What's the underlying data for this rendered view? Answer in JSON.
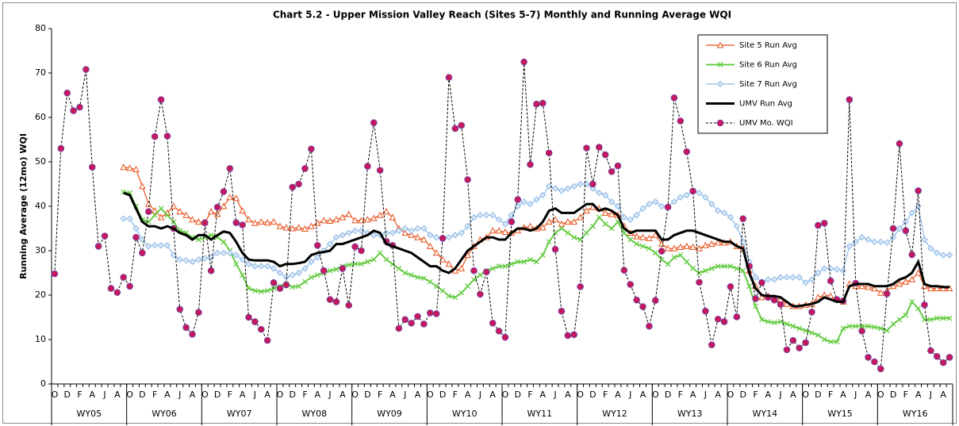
{
  "chart_data": {
    "type": "line",
    "title": "Chart 5.2 - Upper Mission Valley Reach (Sites 5-7) Monthly and Running Average WQI",
    "y_label": "Running Average (12mo) WQI",
    "ylim": [
      0,
      80
    ],
    "yticks": [
      0,
      10,
      20,
      30,
      40,
      50,
      60,
      70,
      80
    ],
    "grid": false,
    "legend": "upper right",
    "categories": [
      "O",
      null,
      "D",
      null,
      "F",
      null,
      "A",
      null,
      "J",
      null,
      "A",
      null,
      "O",
      null,
      "D",
      null,
      "F",
      null,
      "A",
      null,
      "J",
      null,
      "A",
      null,
      "O",
      null,
      "D",
      null,
      "F",
      null,
      "A",
      null,
      "J",
      null,
      "A",
      null,
      "O",
      null,
      "D",
      null,
      "F",
      null,
      "A",
      null,
      "J",
      null,
      "A",
      null,
      "O",
      null,
      "D",
      null,
      "F",
      null,
      "A",
      null,
      "J",
      null,
      "A",
      null,
      "O",
      null,
      "D",
      null,
      "F",
      null,
      "A",
      null,
      "J",
      null,
      "A",
      null,
      "O",
      null,
      "D",
      null,
      "F",
      null,
      "A",
      null,
      "J",
      null,
      "A",
      null,
      "O",
      null,
      "D",
      null,
      "F",
      null,
      "A",
      null,
      "J",
      null,
      "A",
      null,
      "O",
      null,
      "D",
      null,
      "F",
      null,
      "A",
      null,
      "J",
      null,
      "A",
      null,
      "O",
      null,
      "D",
      null,
      "F",
      null,
      "A",
      null,
      "J",
      null,
      "A",
      null,
      "O",
      null,
      "D",
      null,
      "F",
      null,
      "A",
      null,
      "J",
      null,
      "A",
      null,
      "O",
      null,
      "D",
      null,
      "F",
      null,
      "A",
      null,
      "J",
      null,
      "A",
      null
    ],
    "groups": [
      "WY05",
      "WY06",
      "WY07",
      "WY08",
      "WY09",
      "WY10",
      "WY11",
      "WY12",
      "WY13",
      "WY14",
      "WY15",
      "WY16"
    ],
    "series": [
      {
        "name": "Site 5 Run Avg",
        "color": "#e8501a",
        "marker": "triangle",
        "line_width": 1.2,
        "dashed": false,
        "values": [
          null,
          null,
          null,
          null,
          null,
          null,
          null,
          null,
          null,
          null,
          null,
          48.8,
          48.6,
          48.3,
          44.5,
          40.5,
          39,
          37.5,
          38.5,
          40,
          38.8,
          38,
          37,
          36.5,
          36.3,
          38.8,
          38.2,
          40,
          42,
          41.8,
          39,
          37,
          36.2,
          36.5,
          36.3,
          36.5,
          35.5,
          35.2,
          35,
          35.2,
          34.9,
          35.5,
          36.2,
          36.8,
          36.7,
          37,
          37.5,
          38.2,
          36.8,
          36.8,
          37,
          37.3,
          38,
          38.8,
          37.5,
          35,
          34,
          33.5,
          33,
          32.5,
          31,
          29.5,
          28,
          27,
          25.5,
          26,
          29,
          31,
          32.5,
          33,
          34.5,
          34.5,
          34.2,
          34,
          34.5,
          35.2,
          35.5,
          35,
          35.2,
          36.5,
          37,
          36,
          36.5,
          36.5,
          37.5,
          39,
          39.8,
          39.5,
          38.5,
          38.2,
          38,
          35.5,
          34,
          33.2,
          33,
          32.8,
          33.5,
          31.5,
          30.5,
          30.5,
          30.8,
          31,
          30.8,
          30.5,
          31.2,
          31.5,
          31.8,
          31.8,
          32,
          31,
          30.5,
          25.5,
          22,
          19.5,
          19.8,
          19.2,
          19,
          18,
          17.5,
          17.5,
          17.8,
          18,
          19.5,
          20,
          19.8,
          19,
          18.5,
          22.5,
          22,
          22,
          21.8,
          21.5,
          20.5,
          21,
          22,
          22.5,
          23,
          23.5,
          25,
          22,
          21.5,
          21.5,
          21.5,
          21.5
        ]
      },
      {
        "name": "Site 6 Run Avg",
        "color": "#66cc44",
        "marker": "x",
        "line_width": 2,
        "dashed": false,
        "values": [
          null,
          null,
          null,
          null,
          null,
          null,
          null,
          null,
          null,
          null,
          null,
          43.2,
          43,
          40,
          37,
          36.5,
          38,
          39.5,
          38,
          36.5,
          34.5,
          34,
          33,
          32.5,
          33,
          33.5,
          33,
          32,
          30,
          27,
          24.5,
          21.5,
          21,
          20.8,
          21,
          21.5,
          22,
          22.5,
          21.8,
          22,
          23,
          24,
          24.5,
          25,
          25.5,
          25.8,
          26.5,
          26.8,
          27,
          27,
          27.5,
          28,
          29.5,
          28,
          27,
          26,
          25,
          24.5,
          24,
          23.8,
          23,
          22,
          21,
          19.8,
          19.5,
          20.5,
          22,
          23.5,
          24.5,
          25.5,
          26,
          26.5,
          26.5,
          27,
          27.5,
          27.5,
          28,
          27.5,
          29,
          32,
          34,
          35,
          34,
          33,
          32.5,
          34,
          35.5,
          37.5,
          36,
          35,
          36.5,
          34,
          32.5,
          31.5,
          31,
          30.5,
          29.5,
          28,
          27,
          28.5,
          29,
          27.5,
          26,
          25,
          25.5,
          26,
          26.5,
          26.5,
          26.5,
          26,
          25.5,
          22,
          17.5,
          14.5,
          14,
          13.8,
          14,
          13.5,
          13,
          12.5,
          12,
          11.5,
          11,
          10,
          9.5,
          9.5,
          12.5,
          13,
          13,
          13,
          13,
          12.8,
          12.5,
          12,
          13.5,
          14.5,
          15.5,
          18.5,
          17,
          14.5,
          14.5,
          14.8,
          14.8,
          14.8
        ]
      },
      {
        "name": "Site 7 Run Avg",
        "color": "#8db8e6",
        "marker": "diamond",
        "line_width": 1.2,
        "dashed": false,
        "values": [
          null,
          null,
          null,
          null,
          null,
          null,
          null,
          null,
          null,
          null,
          null,
          37.2,
          37.2,
          35,
          32.5,
          31,
          31.2,
          31.2,
          31.2,
          29,
          28,
          27.8,
          27.5,
          28,
          28.3,
          28.5,
          29.5,
          29.5,
          29.5,
          29,
          28,
          27,
          26.5,
          26.5,
          26.5,
          26,
          25,
          24,
          24.5,
          25,
          26,
          27.5,
          28.5,
          30,
          31.5,
          33,
          33.5,
          34,
          34.5,
          34.5,
          34,
          33.5,
          33.5,
          34,
          34,
          34.5,
          35,
          34.5,
          35,
          35,
          33.5,
          33,
          32.5,
          33,
          33.5,
          34,
          35.5,
          37.5,
          38,
          38,
          38,
          37,
          36,
          38,
          40,
          41,
          40.5,
          41.5,
          42.5,
          44.5,
          44,
          43.5,
          44,
          44.5,
          45,
          45,
          44,
          43,
          42.5,
          41,
          40,
          37.5,
          37,
          38,
          39.5,
          40.5,
          41,
          40,
          40,
          41,
          42,
          42.5,
          43.5,
          43,
          42,
          40.5,
          39,
          38.5,
          37.5,
          35.5,
          32,
          27.5,
          24,
          23,
          23.5,
          23.5,
          24,
          24,
          24,
          24,
          22.8,
          23.5,
          25,
          26,
          26,
          25.8,
          25.5,
          31,
          32,
          33,
          32.5,
          32,
          32,
          31.8,
          33,
          35,
          36.5,
          38.5,
          40,
          32.5,
          30.5,
          29.5,
          29,
          29
        ]
      },
      {
        "name": "UMV Run Avg",
        "color": "#000000",
        "marker": "none",
        "line_width": 3,
        "dashed": false,
        "values": [
          null,
          null,
          null,
          null,
          null,
          null,
          null,
          null,
          null,
          null,
          null,
          43,
          42.5,
          39.5,
          36.5,
          35.5,
          35.5,
          35,
          35.5,
          35,
          34,
          33.5,
          32.5,
          33.5,
          33.5,
          32.5,
          33.5,
          34.3,
          34,
          32,
          29.5,
          28,
          27.8,
          27.8,
          27.8,
          27.5,
          26.5,
          27,
          27,
          27.2,
          27.5,
          29,
          29.5,
          29.7,
          30,
          31.5,
          31.5,
          32,
          32.5,
          33,
          33.5,
          34.5,
          34,
          31.5,
          31,
          30.5,
          30,
          29.5,
          28.5,
          27.5,
          26.5,
          26.5,
          25.5,
          25,
          26,
          28,
          30,
          31,
          32,
          33,
          33,
          32.5,
          32.5,
          34,
          35,
          35,
          34.5,
          35,
          36.5,
          39,
          39.5,
          38.5,
          38.5,
          38.5,
          39.5,
          40.5,
          40.5,
          39,
          39.5,
          39,
          38,
          35,
          34,
          34.5,
          34.5,
          34.5,
          34.5,
          32.5,
          32.5,
          33.5,
          34,
          34.5,
          34.5,
          34,
          33.5,
          33,
          32.5,
          32,
          32,
          31,
          30.5,
          25,
          21.5,
          20,
          19.8,
          19.8,
          19.5,
          18.5,
          17.5,
          17.5,
          17.8,
          18,
          18.5,
          19.5,
          19,
          18.5,
          18.5,
          22,
          22.5,
          22.5,
          22.5,
          22,
          22,
          22,
          22.5,
          23.5,
          24,
          25,
          27.5,
          22.5,
          22,
          22,
          21.8,
          21.8
        ]
      },
      {
        "name": "UMV Mo. WQI",
        "color": "#c8185a",
        "marker": "circle",
        "line_width": 1,
        "dashed": true,
        "values": [
          24.8,
          53,
          65.5,
          61.5,
          62.3,
          70.8,
          48.8,
          31,
          33.3,
          21.5,
          20.6,
          24,
          22,
          33,
          29.5,
          38.8,
          55.7,
          64,
          55.8,
          35,
          16.8,
          12.7,
          11.2,
          16.1,
          36.3,
          25.5,
          39.8,
          43.3,
          48.5,
          36.3,
          35.8,
          15,
          14,
          12.3,
          9.8,
          22.8,
          21.5,
          22.3,
          44.3,
          45,
          48.5,
          52.9,
          31.2,
          25.5,
          19,
          18.5,
          26,
          17.7,
          30.9,
          30,
          49,
          58.8,
          48.1,
          32.1,
          31.2,
          12.5,
          14.5,
          13.7,
          15.2,
          13.5,
          16,
          15.8,
          32.8,
          69,
          57.5,
          58.2,
          46,
          25.5,
          20.2,
          25.2,
          13.7,
          11.9,
          10.5,
          36.5,
          41.5,
          72.5,
          49.4,
          63,
          63.2,
          52,
          30.3,
          16.4,
          10.9,
          11.1,
          21.9,
          53.1,
          45,
          53.3,
          51.6,
          47.8,
          49.1,
          25.6,
          22.4,
          18.9,
          17.4,
          13,
          18.8,
          29.9,
          39.8,
          64.4,
          59.2,
          52.3,
          43.4,
          22.9,
          16.4,
          8.8,
          14.6,
          14,
          21.9,
          15.1,
          37.2,
          26.5,
          19.2,
          22.8,
          19.5,
          18.9,
          17.9,
          7.7,
          9.8,
          8.1,
          9.3,
          16.2,
          35.7,
          36.2,
          23.2,
          19,
          18.7,
          64,
          22.7,
          11.9,
          6,
          5,
          3.4,
          20.3,
          35,
          54.1,
          34.5,
          29.1,
          43.5,
          17.8,
          7.5,
          6.2,
          4.8,
          6
        ]
      }
    ]
  }
}
